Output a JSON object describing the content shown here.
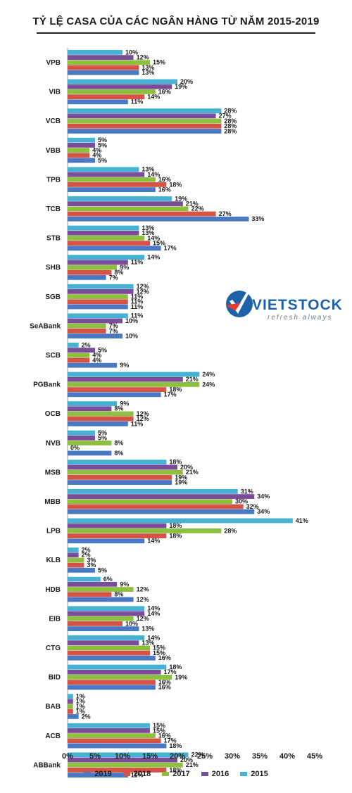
{
  "chart_data": {
    "type": "bar",
    "orientation": "horizontal",
    "title": "TỶ LỆ CASA CỦA CÁC NGÂN HÀNG TỪ NĂM 2015-2019",
    "categories": [
      "VPB",
      "VIB",
      "VCB",
      "VBB",
      "TPB",
      "TCB",
      "STB",
      "SHB",
      "SGB",
      "SeABank",
      "SCB",
      "PGBank",
      "OCB",
      "NVB",
      "MSB",
      "MBB",
      "LPB",
      "KLB",
      "HDB",
      "EIB",
      "CTG",
      "BID",
      "BAB",
      "ACB",
      "ABBank"
    ],
    "series": [
      {
        "name": "2015",
        "color": "#45b2d4",
        "values": [
          10,
          20,
          28,
          5,
          13,
          19,
          13,
          14,
          12,
          11,
          2,
          24,
          9,
          5,
          18,
          31,
          41,
          2,
          6,
          14,
          14,
          18,
          1,
          15,
          22
        ]
      },
      {
        "name": "2016",
        "color": "#7a4c9a",
        "values": [
          12,
          19,
          27,
          5,
          14,
          21,
          13,
          11,
          12,
          10,
          5,
          21,
          8,
          5,
          20,
          34,
          18,
          2,
          9,
          14,
          13,
          17,
          1,
          15,
          20
        ]
      },
      {
        "name": "2017",
        "color": "#8fbf3f",
        "values": [
          15,
          16,
          28,
          4,
          16,
          22,
          14,
          9,
          11,
          7,
          4,
          24,
          12,
          8,
          21,
          30,
          28,
          3,
          12,
          12,
          15,
          19,
          1,
          16,
          21
        ]
      },
      {
        "name": "2018",
        "color": "#d45246",
        "values": [
          13,
          14,
          28,
          4,
          18,
          27,
          15,
          8,
          11,
          7,
          4,
          18,
          12,
          0,
          19,
          32,
          18,
          3,
          8,
          10,
          15,
          16,
          1,
          17,
          18
        ]
      },
      {
        "name": "2019",
        "color": "#4a79c4",
        "values": [
          13,
          11,
          28,
          5,
          16,
          33,
          17,
          7,
          11,
          10,
          9,
          17,
          11,
          8,
          19,
          34,
          14,
          5,
          12,
          13,
          16,
          16,
          2,
          18,
          11
        ]
      }
    ],
    "xlim": [
      0,
      45
    ],
    "xticks": [
      "0%",
      "5%",
      "10%",
      "15%",
      "20%",
      "25%",
      "30%",
      "35%",
      "40%",
      "45%"
    ],
    "value_suffix": "%",
    "legend_position": "bottom",
    "legend_order": [
      "2019",
      "2018",
      "2017",
      "2016",
      "2015"
    ],
    "grid": false
  },
  "logo": {
    "word": "VIETSTOCK",
    "tagline": "refresh always"
  }
}
